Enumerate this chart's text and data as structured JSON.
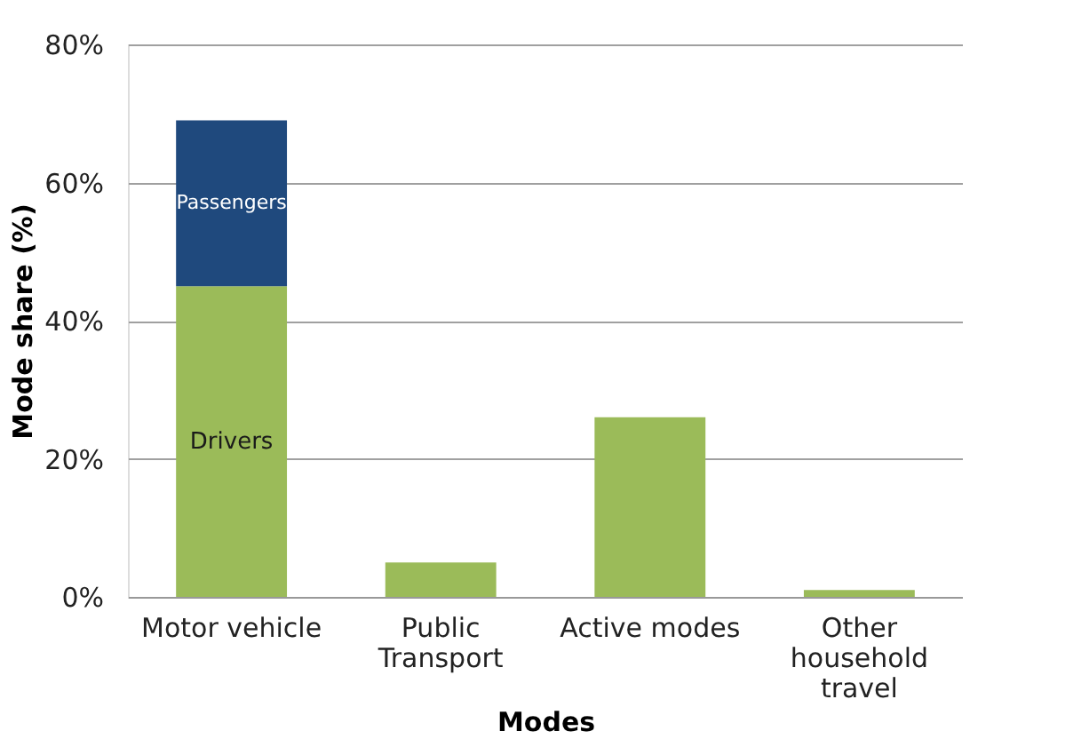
{
  "chart_data": {
    "type": "bar",
    "stacked": true,
    "xlabel": "Modes",
    "ylabel": "Mode share (%)",
    "categories": [
      "Motor vehicle",
      "Public Transport",
      "Active modes",
      "Other household travel"
    ],
    "series": [
      {
        "name": "Drivers",
        "color": "#9bbb59",
        "values": [
          45,
          5,
          26,
          1
        ]
      },
      {
        "name": "Passengers",
        "color": "#1f497d",
        "values": [
          24,
          null,
          null,
          null
        ]
      }
    ],
    "ylim": [
      0,
      80
    ],
    "yticks": [
      {
        "value": 0,
        "label": "0%"
      },
      {
        "value": 20,
        "label": "20%"
      },
      {
        "value": 40,
        "label": "40%"
      },
      {
        "value": 60,
        "label": "60%"
      },
      {
        "value": 80,
        "label": "80%"
      }
    ],
    "grid": "y",
    "legend": false
  }
}
